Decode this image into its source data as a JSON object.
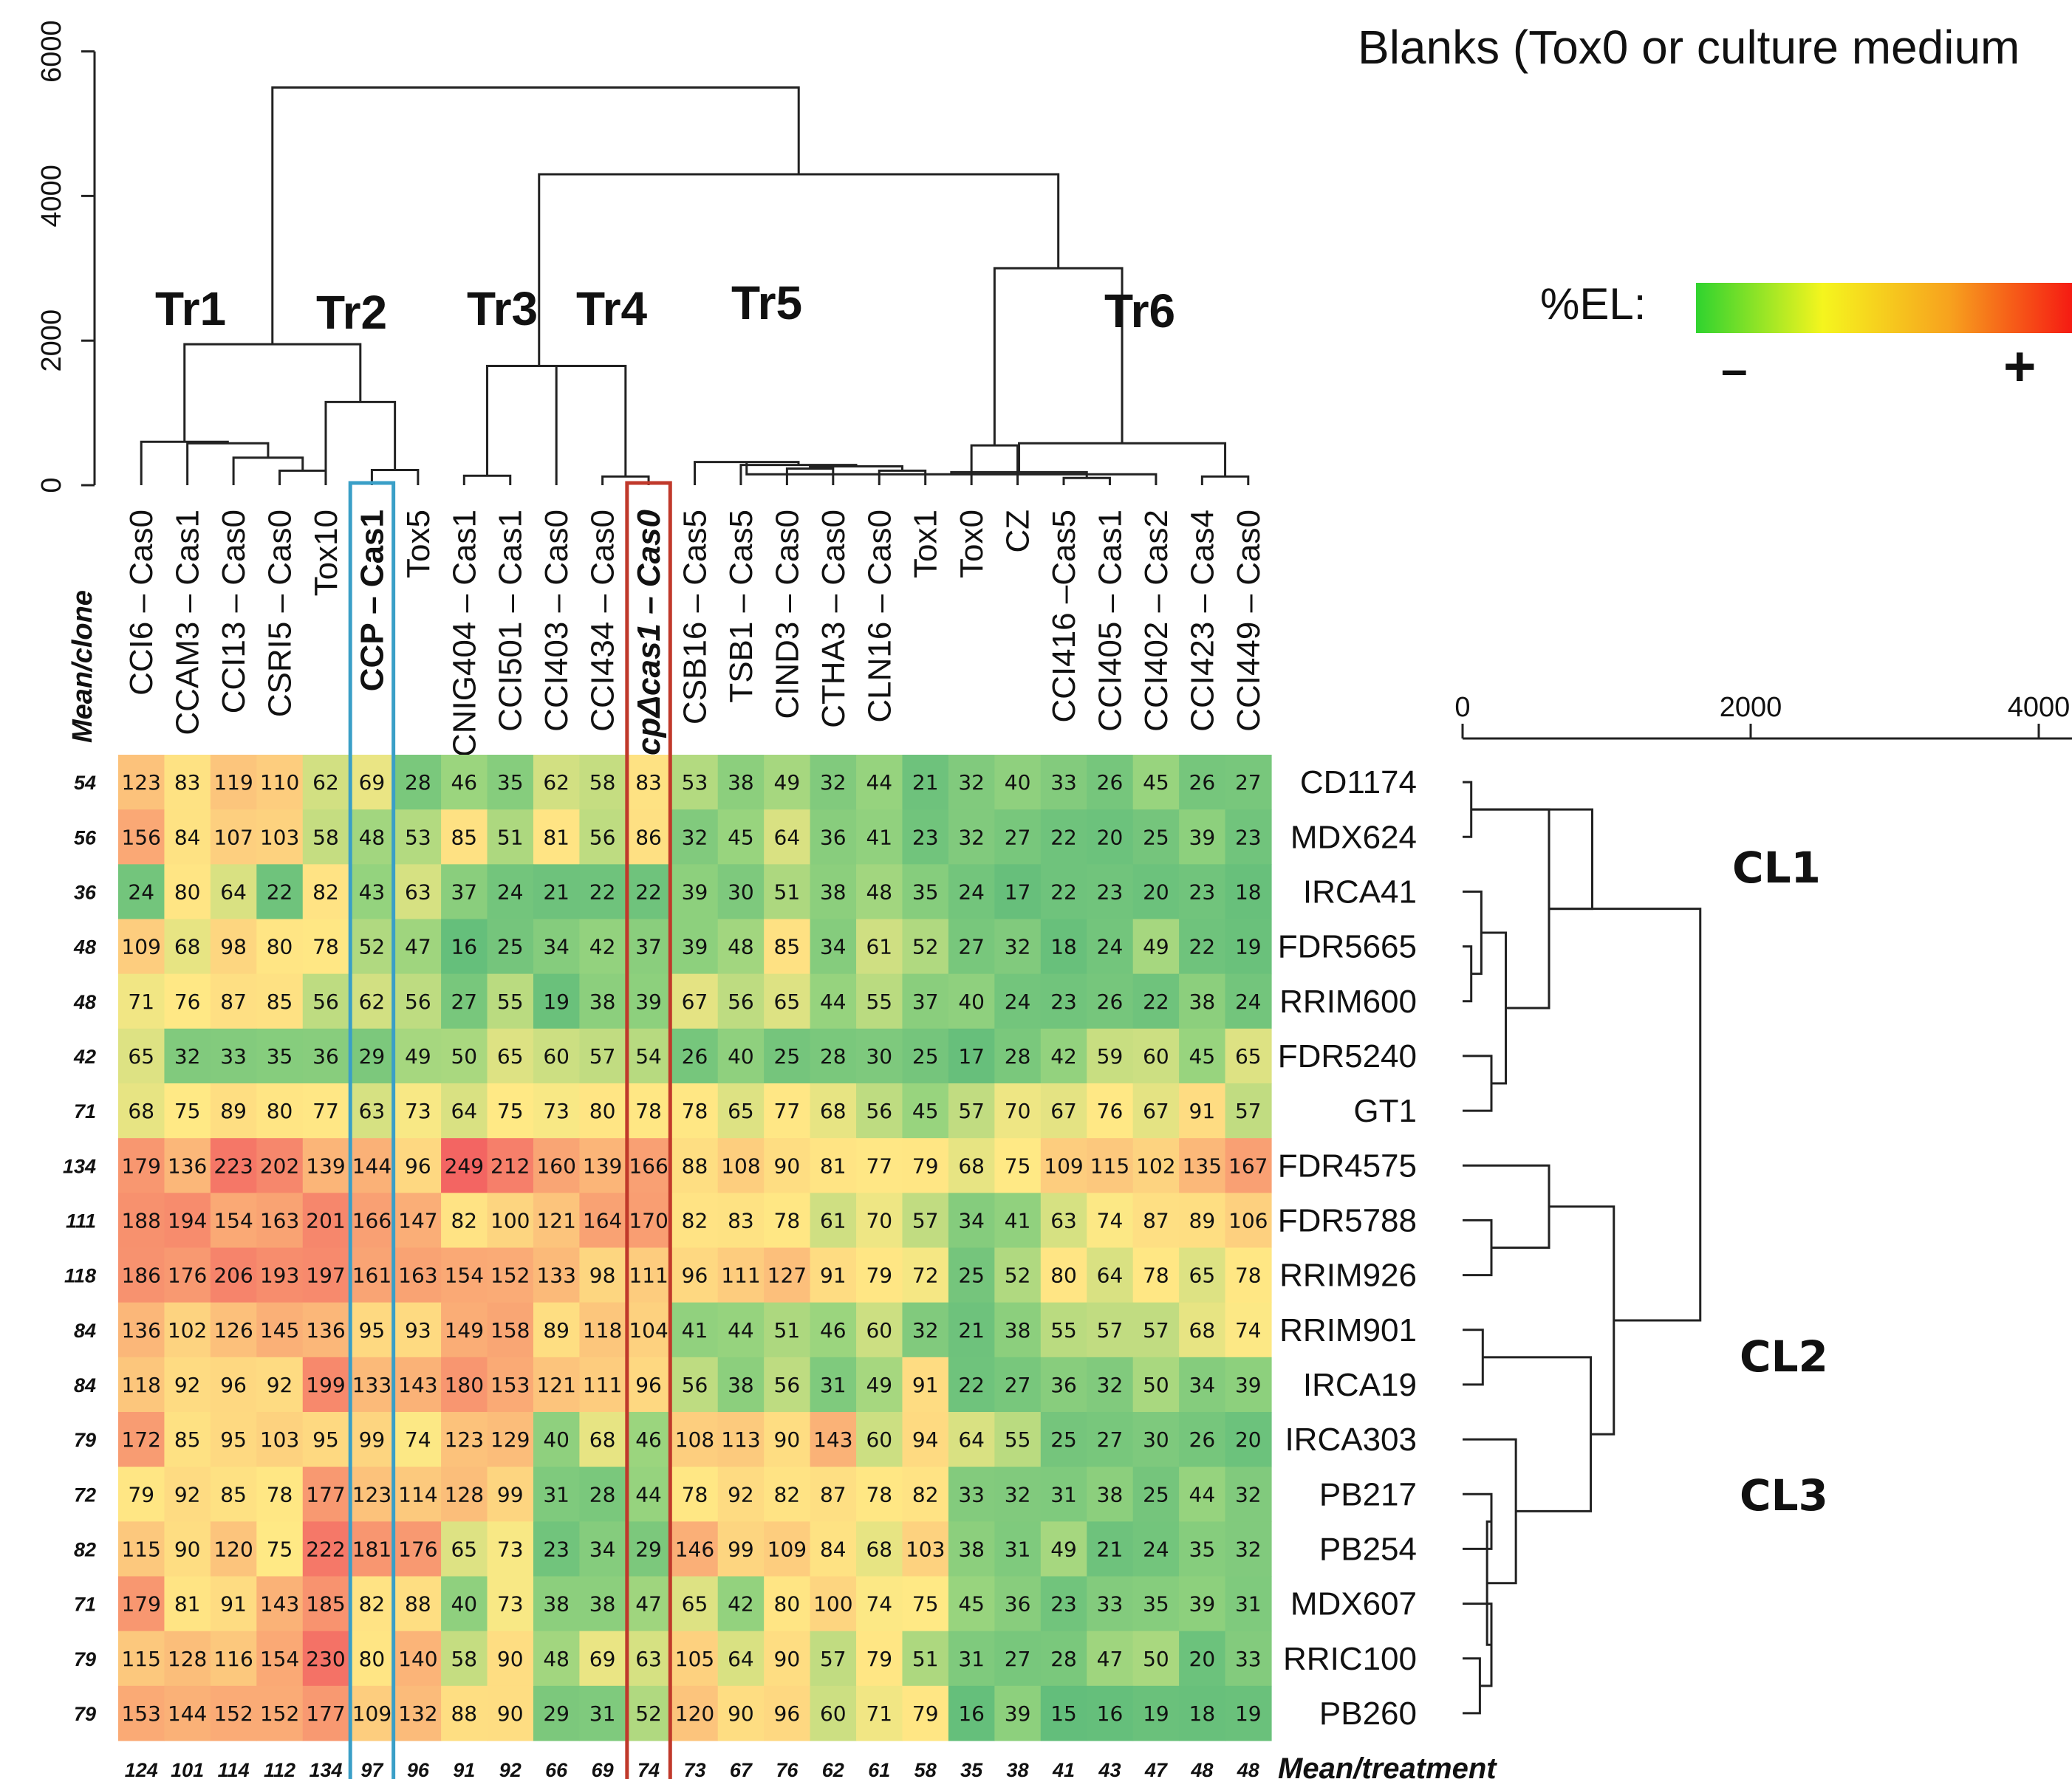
{
  "chart_data": {
    "type": "heatmap",
    "title": "Blanks (Tox0 or culture medium",
    "legend": {
      "label": "%EL:",
      "low_label": "–",
      "high_label": "+",
      "colors": [
        "#2fd32f",
        "#f5f51e",
        "#f7a21e",
        "#f51212"
      ]
    },
    "columns": [
      "CCI6 – Cas0",
      "CCAM3 – Cas1",
      "CCI13 – Cas0",
      "CSRI5 – Cas0",
      "Tox10",
      "CCP – Cas1",
      "Tox5",
      "CNIG404 – Cas1",
      "CCI501 – Cas1",
      "CCI403 – Cas0",
      "CCI434 – Cas0",
      "ccpΔcas1 – Cas0",
      "CSB16 – Cas5",
      "TSB1 – Cas5",
      "CIND3 – Cas0",
      "CTHA3 – Cas0",
      "CLN16 – Cas0",
      "Tox1",
      "Tox0",
      "CZ",
      "CCI416 –Cas5",
      "CCI405 – Cas1",
      "CCI402 – Cas2",
      "CCI423 – Cas4",
      "CCI449 – Cas0"
    ],
    "highlighted_columns": [
      {
        "label": "CCP – Cas1",
        "color": "#3a9fc7"
      },
      {
        "label": "ccpΔcas1 – Cas0",
        "color": "#c0392b"
      }
    ],
    "rows": [
      "CD1174",
      "MDX624",
      "IRCA41",
      "FDR5665",
      "RRIM600",
      "FDR5240",
      "GT1",
      "FDR4575",
      "FDR5788",
      "RRIM926",
      "RRIM901",
      "IRCA19",
      "IRCA303",
      "PB217",
      "PB254",
      "MDX607",
      "RRIC100",
      "PB260"
    ],
    "values": [
      [
        123,
        83,
        119,
        110,
        62,
        69,
        28,
        46,
        35,
        62,
        58,
        83,
        53,
        38,
        49,
        32,
        44,
        21,
        32,
        40,
        33,
        26,
        45,
        26,
        27
      ],
      [
        156,
        84,
        107,
        103,
        58,
        48,
        53,
        85,
        51,
        81,
        56,
        86,
        32,
        45,
        64,
        36,
        41,
        23,
        32,
        27,
        22,
        20,
        25,
        39,
        23
      ],
      [
        24,
        80,
        64,
        22,
        82,
        43,
        63,
        37,
        24,
        21,
        22,
        22,
        39,
        30,
        51,
        38,
        48,
        35,
        24,
        17,
        22,
        23,
        20,
        23,
        18
      ],
      [
        109,
        68,
        98,
        80,
        78,
        52,
        47,
        16,
        25,
        34,
        42,
        37,
        39,
        48,
        85,
        34,
        61,
        52,
        27,
        32,
        18,
        24,
        49,
        22,
        19
      ],
      [
        71,
        76,
        87,
        85,
        56,
        62,
        56,
        27,
        55,
        19,
        38,
        39,
        67,
        56,
        65,
        44,
        55,
        37,
        40,
        24,
        23,
        26,
        22,
        38,
        24
      ],
      [
        65,
        32,
        33,
        35,
        36,
        29,
        49,
        50,
        65,
        60,
        57,
        54,
        26,
        40,
        25,
        28,
        30,
        25,
        17,
        28,
        42,
        59,
        60,
        45,
        65
      ],
      [
        68,
        75,
        89,
        80,
        77,
        63,
        73,
        64,
        75,
        73,
        80,
        78,
        78,
        65,
        77,
        68,
        56,
        45,
        57,
        70,
        67,
        76,
        67,
        91,
        57
      ],
      [
        179,
        136,
        223,
        202,
        139,
        144,
        96,
        249,
        212,
        160,
        139,
        166,
        88,
        108,
        90,
        81,
        77,
        79,
        68,
        75,
        109,
        115,
        102,
        135,
        167
      ],
      [
        188,
        194,
        154,
        163,
        201,
        166,
        147,
        82,
        100,
        121,
        164,
        170,
        82,
        83,
        78,
        61,
        70,
        57,
        34,
        41,
        63,
        74,
        87,
        89,
        106
      ],
      [
        186,
        176,
        206,
        193,
        197,
        161,
        163,
        154,
        152,
        133,
        98,
        111,
        96,
        111,
        127,
        91,
        79,
        72,
        25,
        52,
        80,
        64,
        78,
        65,
        78
      ],
      [
        136,
        102,
        126,
        145,
        136,
        95,
        93,
        149,
        158,
        89,
        118,
        104,
        41,
        44,
        51,
        46,
        60,
        32,
        21,
        38,
        55,
        57,
        57,
        68,
        74
      ],
      [
        118,
        92,
        96,
        92,
        199,
        133,
        143,
        180,
        153,
        121,
        111,
        96,
        56,
        38,
        56,
        31,
        49,
        91,
        22,
        27,
        36,
        32,
        50,
        34,
        39
      ],
      [
        172,
        85,
        95,
        103,
        95,
        99,
        74,
        123,
        129,
        40,
        68,
        46,
        108,
        113,
        90,
        143,
        60,
        94,
        64,
        55,
        25,
        27,
        30,
        26,
        20
      ],
      [
        79,
        92,
        85,
        78,
        177,
        123,
        114,
        128,
        99,
        31,
        28,
        44,
        78,
        92,
        82,
        87,
        78,
        82,
        33,
        32,
        31,
        38,
        25,
        44,
        32
      ],
      [
        115,
        90,
        120,
        75,
        222,
        181,
        176,
        65,
        73,
        23,
        34,
        29,
        146,
        99,
        109,
        84,
        68,
        103,
        38,
        31,
        49,
        21,
        24,
        35,
        32
      ],
      [
        179,
        81,
        91,
        143,
        185,
        82,
        88,
        40,
        73,
        38,
        38,
        47,
        65,
        42,
        80,
        100,
        74,
        75,
        45,
        36,
        23,
        33,
        35,
        39,
        31
      ],
      [
        115,
        128,
        116,
        154,
        230,
        80,
        140,
        58,
        90,
        48,
        69,
        63,
        105,
        64,
        90,
        57,
        79,
        51,
        31,
        27,
        28,
        47,
        50,
        20,
        33
      ],
      [
        153,
        144,
        152,
        152,
        177,
        109,
        132,
        88,
        90,
        29,
        31,
        52,
        120,
        90,
        96,
        60,
        71,
        79,
        16,
        39,
        15,
        16,
        19,
        18,
        19
      ]
    ],
    "row_means_label": "Mean/clone",
    "row_means": [
      54,
      56,
      36,
      48,
      48,
      42,
      71,
      134,
      111,
      118,
      84,
      84,
      79,
      72,
      82,
      71,
      79,
      79
    ],
    "col_means_label": "Mean/treatment",
    "col_means": [
      124,
      101,
      114,
      112,
      134,
      97,
      96,
      91,
      92,
      66,
      69,
      74,
      73,
      67,
      76,
      62,
      61,
      58,
      35,
      38,
      41,
      43,
      47,
      48,
      48
    ],
    "column_dendrogram": {
      "axis_ticks": [
        0,
        2000,
        4000,
        6000
      ],
      "ylim": [
        0,
        6200
      ],
      "groups": [
        "Tr1",
        "Tr2",
        "Tr3",
        "Tr4",
        "Tr5",
        "Tr6"
      ],
      "merges": [
        [
          -17,
          -18,
          200
        ],
        [
          -15,
          -16,
          230
        ],
        [
          1,
          2,
          260
        ],
        [
          -14,
          3,
          280
        ],
        [
          -13,
          4,
          320
        ],
        [
          -21,
          -22,
          100
        ],
        [
          5,
          -23,
          150
        ],
        [
          -24,
          -25,
          120
        ],
        [
          6,
          7,
          180
        ],
        [
          -19,
          -20,
          550
        ],
        [
          8,
          9,
          580
        ],
        [
          10,
          11,
          3000
        ],
        [
          -6,
          -7,
          210
        ],
        [
          -4,
          -5,
          200
        ],
        [
          -3,
          14,
          380
        ],
        [
          -2,
          15,
          580
        ],
        [
          -1,
          16,
          600
        ],
        [
          -5,
          13,
          1150
        ],
        [
          17,
          18,
          1950
        ],
        [
          -11,
          -12,
          120
        ],
        [
          -10,
          20,
          1650
        ],
        [
          -8,
          -9,
          130
        ],
        [
          21,
          22,
          1650
        ],
        [
          23,
          12,
          4300
        ],
        [
          19,
          24,
          5500
        ]
      ]
    },
    "row_dendrogram": {
      "axis_ticks": [
        0,
        2000,
        4000
      ],
      "xlim": [
        0,
        5500
      ],
      "groups": [
        "CL1",
        "CL2",
        "CL3"
      ]
    }
  }
}
